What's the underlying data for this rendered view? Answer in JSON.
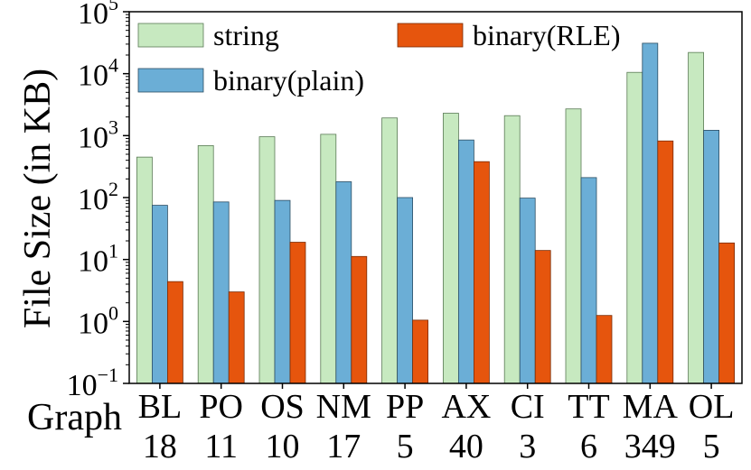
{
  "chart_data": {
    "type": "bar",
    "scale": "log10",
    "ylabel": "File Size (in KB)",
    "xlabel": "Graph",
    "ylim_exponents": [
      -1,
      5
    ],
    "y_ticks": [
      {
        "exp": -1,
        "base": "10",
        "sup": "−1"
      },
      {
        "exp": 0,
        "base": "10",
        "sup": "0"
      },
      {
        "exp": 1,
        "base": "10",
        "sup": "1"
      },
      {
        "exp": 2,
        "base": "10",
        "sup": "2"
      },
      {
        "exp": 3,
        "base": "10",
        "sup": "3"
      },
      {
        "exp": 4,
        "base": "10",
        "sup": "4"
      },
      {
        "exp": 5,
        "base": "10",
        "sup": "5"
      }
    ],
    "categories": [
      {
        "name": "BL",
        "sub": "18"
      },
      {
        "name": "PO",
        "sub": "11"
      },
      {
        "name": "OS",
        "sub": "10"
      },
      {
        "name": "NM",
        "sub": "17"
      },
      {
        "name": "PP",
        "sub": "5"
      },
      {
        "name": "AX",
        "sub": "40"
      },
      {
        "name": "CI",
        "sub": "3"
      },
      {
        "name": "TT",
        "sub": "6"
      },
      {
        "name": "MA",
        "sub": "349"
      },
      {
        "name": "OL",
        "sub": "5"
      }
    ],
    "series": [
      {
        "name": "string",
        "color": "#c7e9c0",
        "edge": "#5a7a55",
        "values": [
          450,
          690,
          960,
          1050,
          1930,
          2300,
          2100,
          2700,
          10500,
          22000
        ]
      },
      {
        "name": "binary(plain)",
        "color": "#6baed6",
        "edge": "#2b4d63",
        "values": [
          75,
          85,
          90,
          180,
          100,
          850,
          98,
          210,
          31000,
          1220
        ]
      },
      {
        "name": "binary(RLE)",
        "color": "#e6550d",
        "edge": "#7a2b05",
        "values": [
          4.4,
          3.0,
          19,
          11.2,
          1.05,
          380,
          14,
          1.25,
          820,
          18.5
        ]
      }
    ],
    "legend": [
      {
        "label": "string",
        "color": "#c7e9c0",
        "edge": "#5a7a55",
        "position": "top-left"
      },
      {
        "label": "binary(RLE)",
        "color": "#e6550d",
        "edge": "#7a2b05",
        "position": "top-right"
      },
      {
        "label": "binary(plain)",
        "color": "#6baed6",
        "edge": "#2b4d63",
        "position": "top-left-second-row"
      }
    ]
  }
}
